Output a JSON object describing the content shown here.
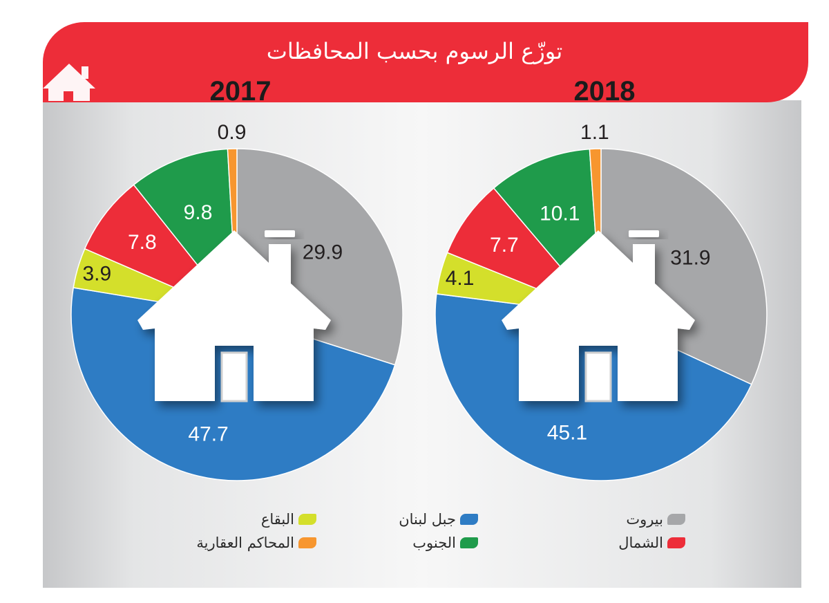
{
  "header": {
    "title": "توزّع الرسوم بحسب المحافظات"
  },
  "colors": {
    "banner": "#ed2d39",
    "بيروت": "#a6a7a9",
    "جبل لبنان": "#2e7cc4",
    "البقاع": "#d4df2b",
    "الشمال": "#ed2d39",
    "الجنوب": "#1f9b4b",
    "المحاكم العقارية": "#f7962f"
  },
  "icons": [
    "house-icon"
  ],
  "legend": {
    "items": [
      "بيروت",
      "جبل لبنان",
      "البقاع",
      "الشمال",
      "الجنوب",
      "المحاكم العقارية"
    ]
  },
  "chart_data": [
    {
      "type": "pie",
      "title": "2018",
      "labels": [
        "بيروت",
        "جبل لبنان",
        "البقاع",
        "الشمال",
        "الجنوب",
        "المحاكم العقارية"
      ],
      "values": [
        31.9,
        45.1,
        4.1,
        7.7,
        10.1,
        1.1
      ],
      "value_labels": [
        "31.9",
        "45.1",
        "4.1",
        "7.7",
        "10.1",
        "1.1"
      ],
      "direction": "clockwise from top"
    },
    {
      "type": "pie",
      "title": "2017",
      "labels": [
        "بيروت",
        "جبل لبنان",
        "البقاع",
        "الشمال",
        "الجنوب",
        "المحاكم العقارية"
      ],
      "values": [
        29.9,
        47.7,
        3.9,
        7.8,
        9.8,
        0.9
      ],
      "value_labels": [
        "29.9",
        "47.7",
        "3.9",
        "7.8",
        "9.8",
        "0.9"
      ],
      "direction": "clockwise from top"
    }
  ]
}
